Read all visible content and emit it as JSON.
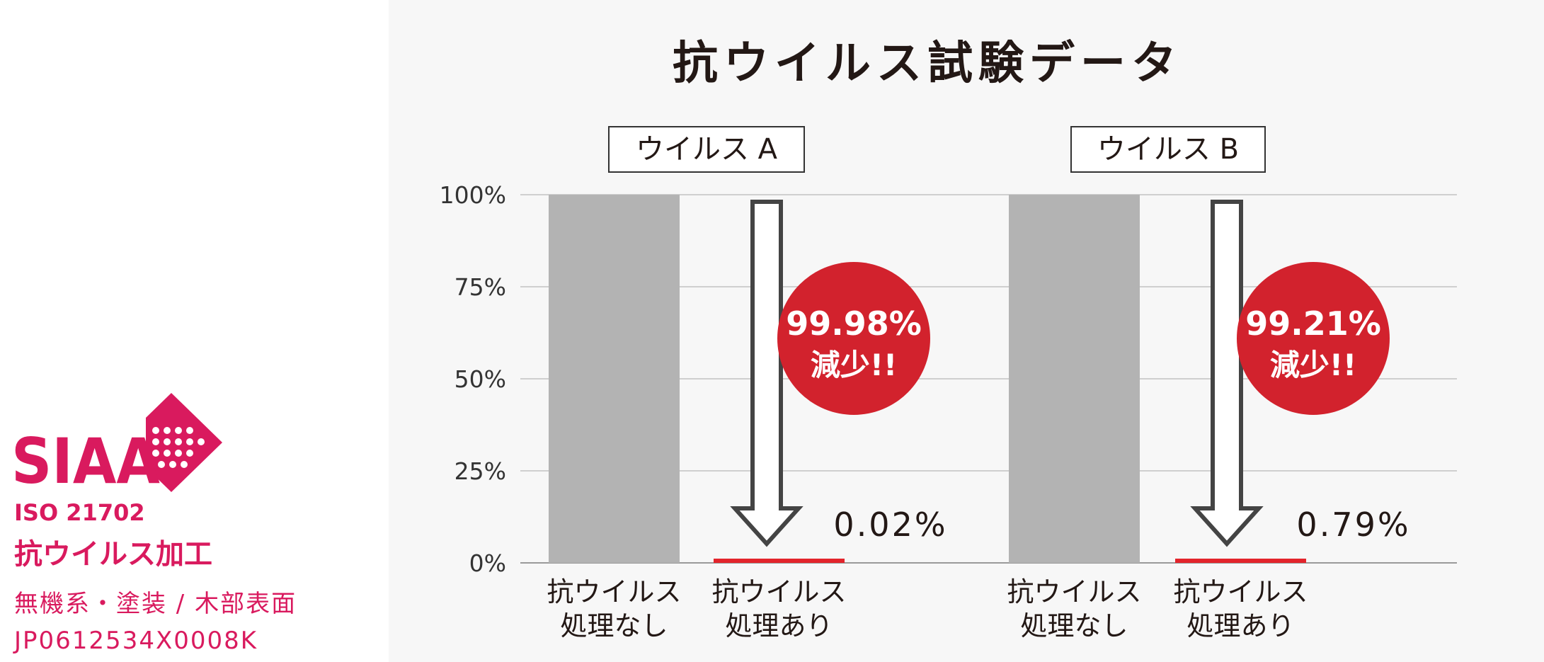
{
  "title": "抗ウイルス試験データ",
  "chart_data": [
    {
      "type": "bar",
      "title": "ウイルス A",
      "categories": [
        "抗ウイルス処理なし",
        "抗ウイルス処理あり"
      ],
      "category_lines": [
        [
          "抗ウイルス",
          "処理なし"
        ],
        [
          "抗ウイルス",
          "処理あり"
        ]
      ],
      "values": [
        100,
        0.02
      ],
      "value_label": "0.02%",
      "reduction_value": "99.98%",
      "reduction_text": "減少!!",
      "ylim": [
        0,
        100
      ],
      "yticks": [
        "0%",
        "25%",
        "50%",
        "75%",
        "100%"
      ],
      "grid": true,
      "colors": {
        "untreated": "#b3b3b3",
        "treated": "#e3242b",
        "badge": "#d2222d"
      }
    },
    {
      "type": "bar",
      "title": "ウイルス B",
      "categories": [
        "抗ウイルス処理なし",
        "抗ウイルス処理あり"
      ],
      "category_lines": [
        [
          "抗ウイルス",
          "処理なし"
        ],
        [
          "抗ウイルス",
          "処理あり"
        ]
      ],
      "values": [
        100,
        0.79
      ],
      "value_label": "0.79%",
      "reduction_value": "99.21%",
      "reduction_text": "減少!!",
      "ylim": [
        0,
        100
      ],
      "yticks": [
        "0%",
        "25%",
        "50%",
        "75%",
        "100%"
      ],
      "grid": true,
      "colors": {
        "untreated": "#b3b3b3",
        "treated": "#e3242b",
        "badge": "#d2222d"
      }
    }
  ],
  "siaa": {
    "logo_text": "SIAA",
    "iso": "ISO 21702",
    "process": "抗ウイルス加工",
    "category": "無機系・塗装 / 木部表面",
    "registration": "JP0612534X0008K",
    "color": "#d91a5e"
  }
}
